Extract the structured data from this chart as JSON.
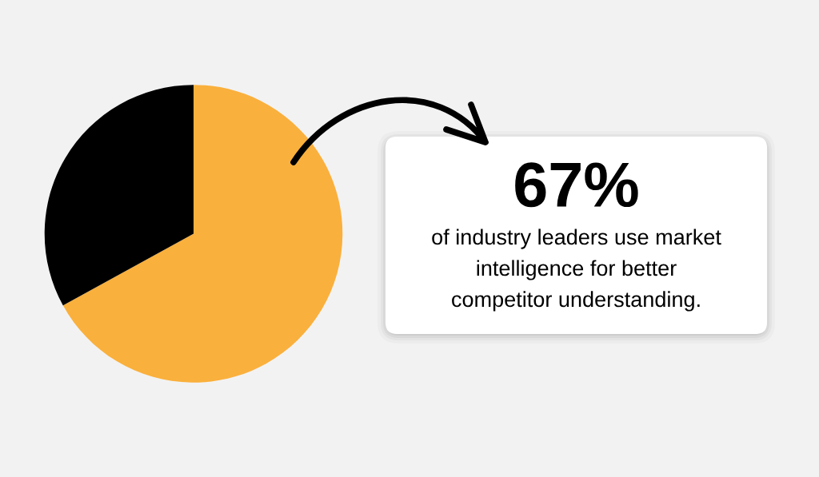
{
  "chart_data": {
    "type": "pie",
    "categories": [
      null,
      null
    ],
    "values": [
      67,
      33
    ],
    "colors": [
      "#fab03c",
      "#000000"
    ],
    "annotations": [
      "67%",
      "of industry leaders use market\nintelligence for better\ncompetitor understanding."
    ]
  }
}
